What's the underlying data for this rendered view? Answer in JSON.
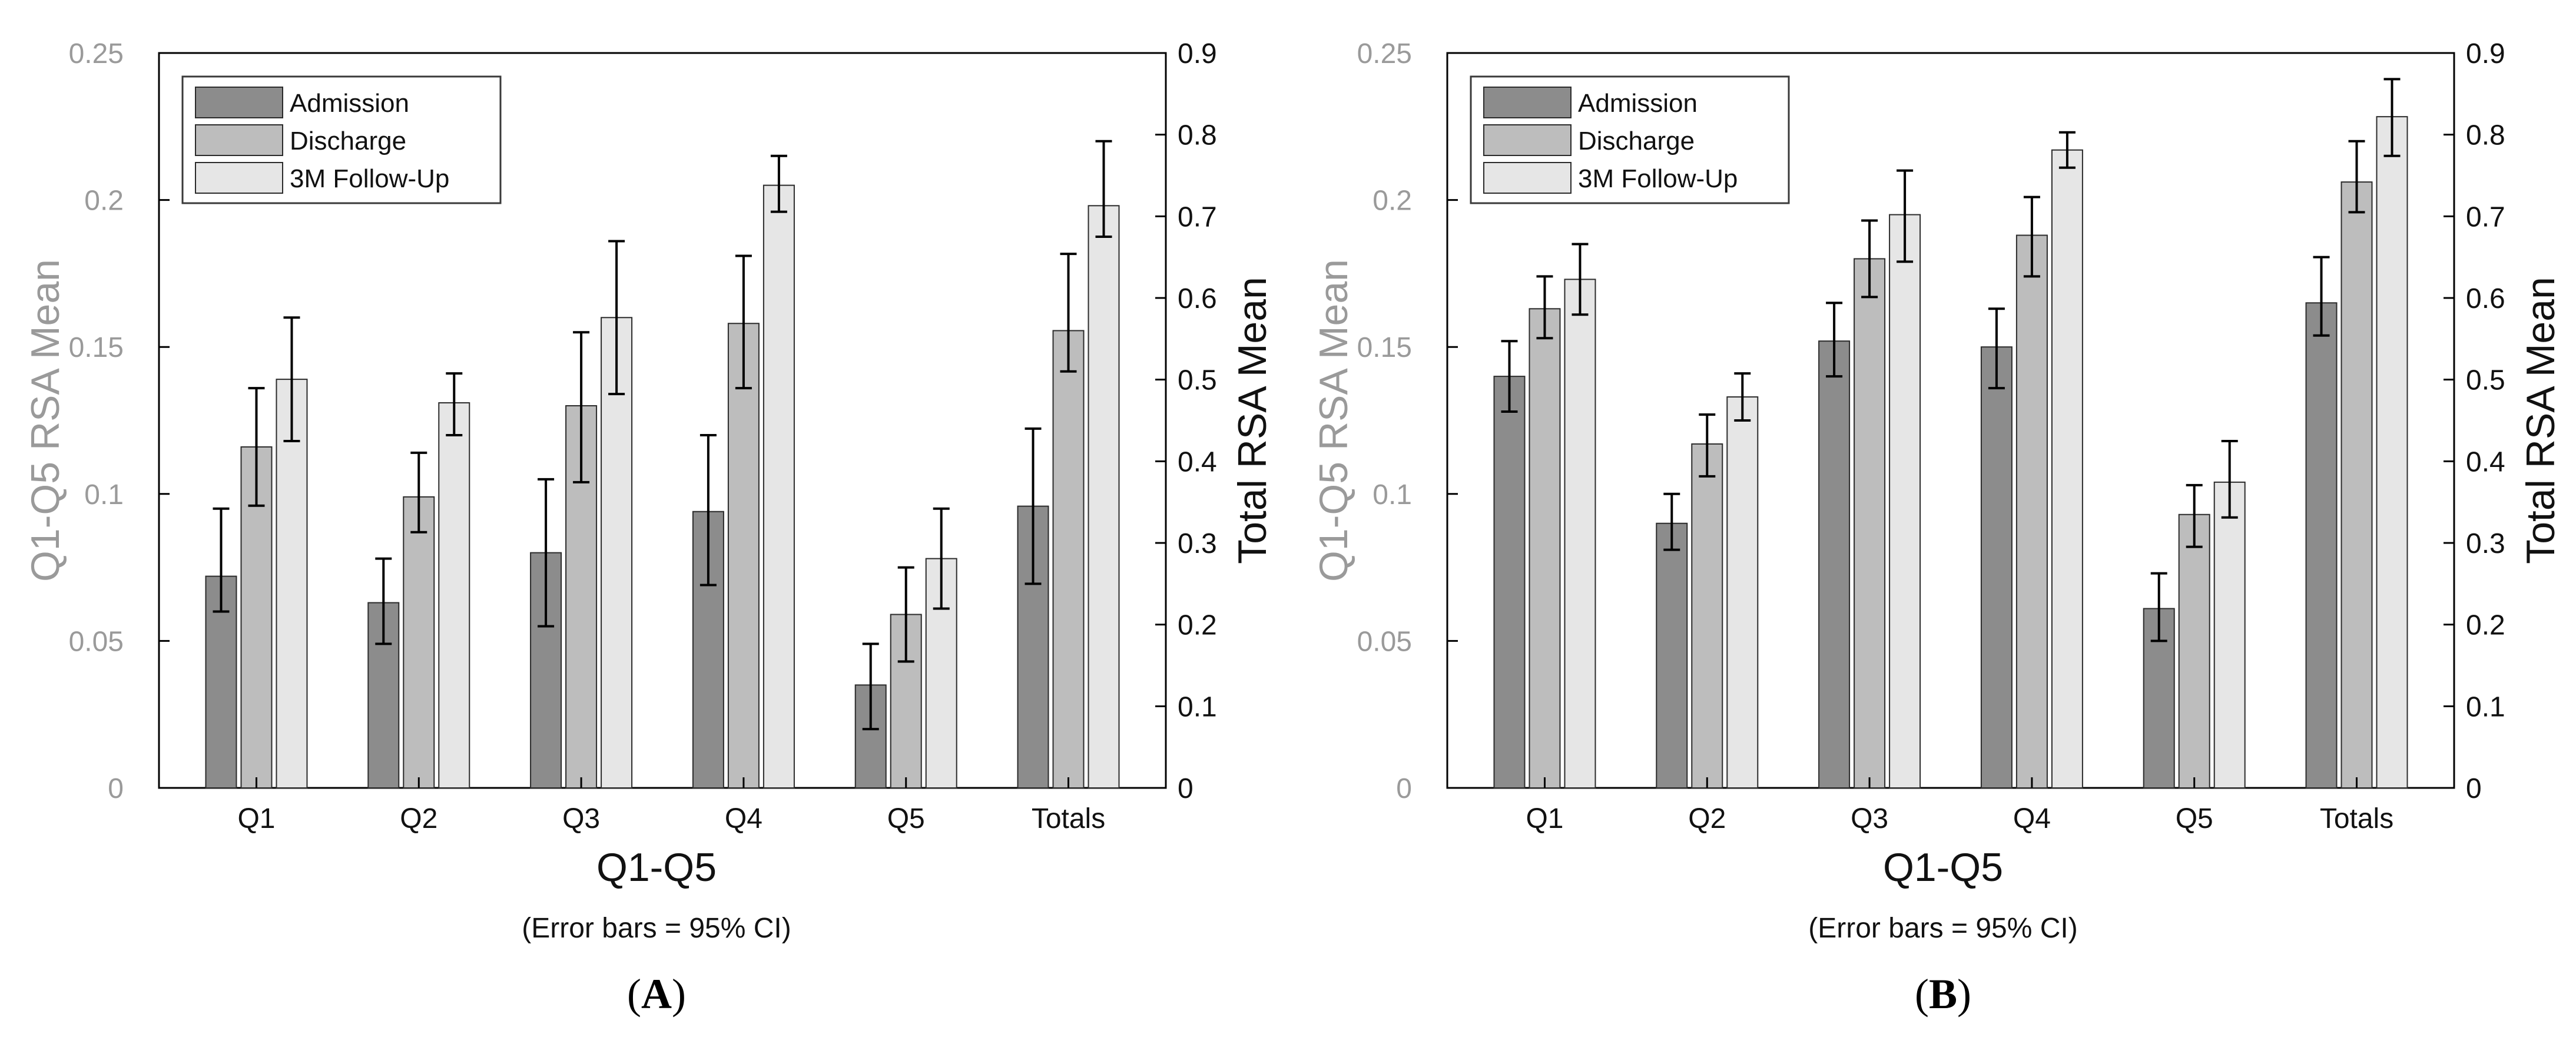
{
  "colors": {
    "admission": "#8c8c8c",
    "discharge": "#bdbdbd",
    "followup": "#e6e6e6",
    "bar_edge": "#2b2b2b",
    "left_axis_text": "#9a9a9a",
    "right_axis_text": "#111111",
    "axis_line": "#000000"
  },
  "chart_data": [
    {
      "panel_label": "A",
      "type": "bar",
      "title": "",
      "xlabel": "Q1-Q5",
      "ylabel": "Q1-Q5 RSA Mean",
      "ylabel_right": "Total RSA Mean",
      "note": "(Error bars = 95% CI)",
      "categories": [
        "Q1",
        "Q2",
        "Q3",
        "Q4",
        "Q5",
        "Totals"
      ],
      "ylim": [
        0,
        0.25
      ],
      "yticks": [
        "0",
        "0.05",
        "0.1",
        "0.15",
        "0.2",
        "0.25"
      ],
      "ylim_right": [
        0,
        0.9
      ],
      "yticks_right": [
        "0",
        "0.1",
        "0.2",
        "0.3",
        "0.4",
        "0.5",
        "0.6",
        "0.7",
        "0.8",
        "0.9"
      ],
      "legend_position": "top-left",
      "series": [
        {
          "name": "Admission",
          "values": [
            0.072,
            0.063,
            0.08,
            0.094,
            0.035,
            0.345
          ],
          "ci_low": [
            0.06,
            0.049,
            0.055,
            0.069,
            0.02,
            0.25
          ],
          "ci_high": [
            0.095,
            0.078,
            0.105,
            0.12,
            0.049,
            0.44
          ]
        },
        {
          "name": "Discharge",
          "values": [
            0.116,
            0.099,
            0.13,
            0.158,
            0.059,
            0.56
          ],
          "ci_low": [
            0.096,
            0.087,
            0.104,
            0.136,
            0.043,
            0.51
          ],
          "ci_high": [
            0.136,
            0.114,
            0.155,
            0.181,
            0.075,
            0.654
          ]
        },
        {
          "name": "3M Follow-Up",
          "values": [
            0.139,
            0.131,
            0.16,
            0.205,
            0.078,
            0.713
          ],
          "ci_low": [
            0.118,
            0.12,
            0.134,
            0.196,
            0.061,
            0.675
          ],
          "ci_high": [
            0.16,
            0.141,
            0.186,
            0.215,
            0.095,
            0.792
          ]
        }
      ]
    },
    {
      "panel_label": "B",
      "type": "bar",
      "title": "",
      "xlabel": "Q1-Q5",
      "ylabel": "Q1-Q5 RSA Mean",
      "ylabel_right": "Total RSA Mean",
      "note": "(Error bars = 95% CI)",
      "categories": [
        "Q1",
        "Q2",
        "Q3",
        "Q4",
        "Q5",
        "Totals"
      ],
      "ylim": [
        0,
        0.25
      ],
      "yticks": [
        "0",
        "0.05",
        "0.1",
        "0.15",
        "0.2",
        "0.25"
      ],
      "ylim_right": [
        0,
        0.9
      ],
      "yticks_right": [
        "0",
        "0.1",
        "0.2",
        "0.3",
        "0.4",
        "0.5",
        "0.6",
        "0.7",
        "0.8",
        "0.9"
      ],
      "legend_position": "top-left",
      "series": [
        {
          "name": "Admission",
          "values": [
            0.14,
            0.09,
            0.152,
            0.15,
            0.061,
            0.594
          ],
          "ci_low": [
            0.128,
            0.081,
            0.14,
            0.136,
            0.05,
            0.554
          ],
          "ci_high": [
            0.152,
            0.1,
            0.165,
            0.163,
            0.073,
            0.65
          ]
        },
        {
          "name": "Discharge",
          "values": [
            0.163,
            0.117,
            0.18,
            0.188,
            0.093,
            0.742
          ],
          "ci_low": [
            0.153,
            0.106,
            0.167,
            0.174,
            0.082,
            0.705
          ],
          "ci_high": [
            0.174,
            0.127,
            0.193,
            0.201,
            0.103,
            0.792
          ]
        },
        {
          "name": "3M Follow-Up",
          "values": [
            0.173,
            0.133,
            0.195,
            0.217,
            0.104,
            0.822
          ],
          "ci_low": [
            0.161,
            0.125,
            0.179,
            0.211,
            0.092,
            0.774
          ],
          "ci_high": [
            0.185,
            0.141,
            0.21,
            0.223,
            0.118,
            0.868
          ]
        }
      ]
    }
  ]
}
